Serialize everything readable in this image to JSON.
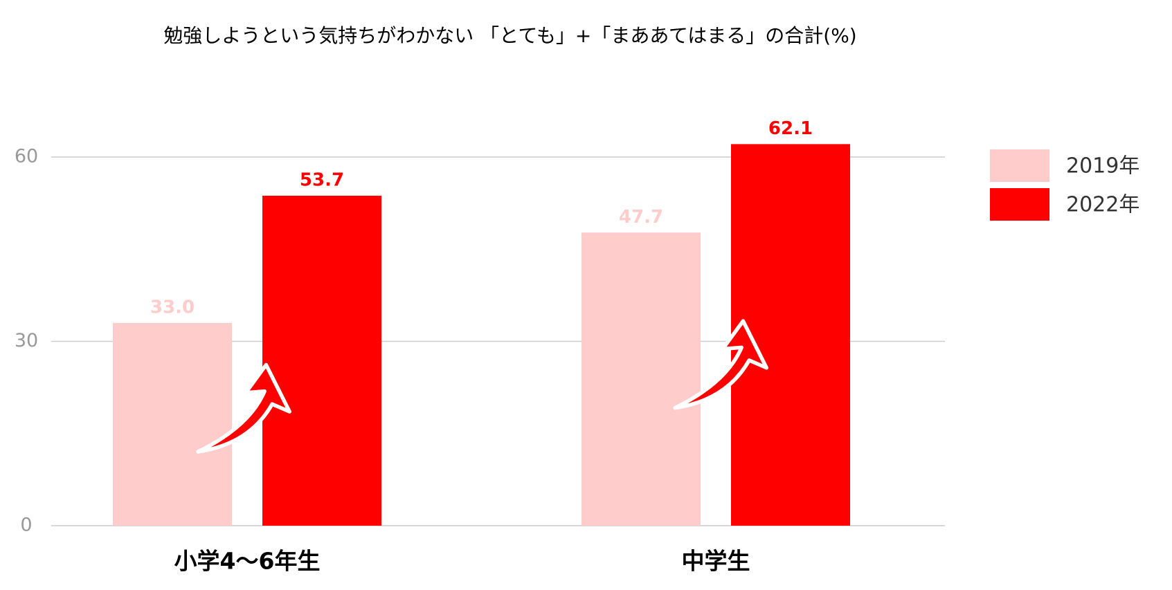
{
  "chart_data": {
    "type": "bar",
    "title": "勉強しようという気持ちがわかない 「とても」+「まああてはまる」の合計(%)",
    "categories": [
      "小学4〜6年生",
      "中学生"
    ],
    "series": [
      {
        "name": "2019年",
        "color": "#ffcccc",
        "values": [
          33.0,
          47.7
        ],
        "value_labels": [
          "33.0",
          "47.7"
        ]
      },
      {
        "name": "2022年",
        "color": "#ff0000",
        "values": [
          53.7,
          62.1
        ]
      }
    ],
    "ylim": [
      0,
      60
    ],
    "yticks": [
      0,
      30,
      60
    ],
    "grid": true,
    "legend": "right"
  }
}
